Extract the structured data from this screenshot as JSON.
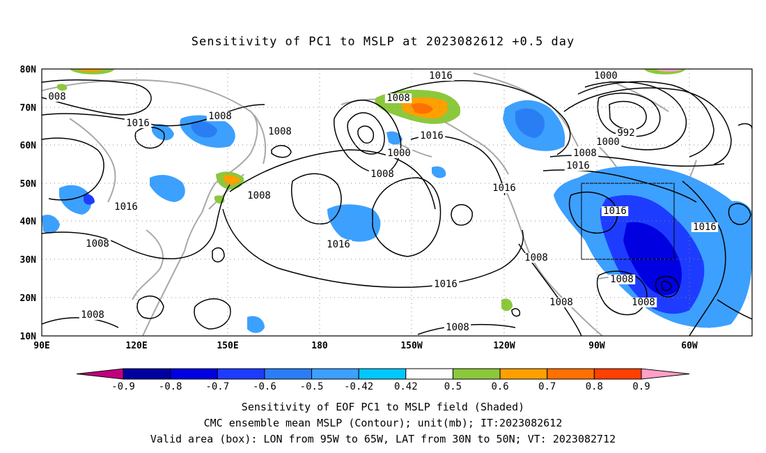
{
  "title": "Sensitivity of PC1 to MSLP at 2023082612 +0.5 day",
  "map": {
    "lon_labels": [
      "90E",
      "120E",
      "150E",
      "180",
      "150W",
      "120W",
      "90W",
      "60W"
    ],
    "lat_labels": [
      "10N",
      "20N",
      "30N",
      "40N",
      "50N",
      "60N",
      "70N",
      "80N"
    ],
    "contour_labels": [
      "1016",
      "1000",
      "1008",
      "008",
      "1008",
      "1016",
      "1008",
      "1016",
      "1000",
      "1008",
      "1008",
      "1016",
      "992",
      "1000",
      "1008",
      "1016",
      "1016",
      "1016",
      "1008",
      "1008",
      "1016",
      "1016",
      "1008",
      "1008",
      "1008",
      "1008",
      "1008",
      "1016"
    ],
    "valid_box": {
      "lon": [
        -95,
        -65
      ],
      "lat": [
        30,
        50
      ]
    }
  },
  "colorbar": {
    "labels": [
      "-0.9",
      "-0.8",
      "-0.7",
      "-0.6",
      "-0.5",
      "-0.42",
      "0.42",
      "0.5",
      "0.6",
      "0.7",
      "0.8",
      "0.9"
    ],
    "colors": [
      "#c0007f",
      "#0000a0",
      "#0000e0",
      "#1e3cff",
      "#2a7ef4",
      "#3ca0ff",
      "#00c8ff",
      "#ffffff",
      "#8cc83c",
      "#ffa000",
      "#ff7000",
      "#ff4000",
      "#ff0000",
      "#ffa0c8"
    ]
  },
  "footer": {
    "line1": "Sensitivity of EOF PC1 to MSLP field (Shaded)",
    "line2": "CMC ensemble mean MSLP (Contour); unit(mb); IT:2023082612",
    "line3": "Valid area (box): LON from 95W to 65W, LAT from 30N to 50N; VT: 2023082712"
  }
}
